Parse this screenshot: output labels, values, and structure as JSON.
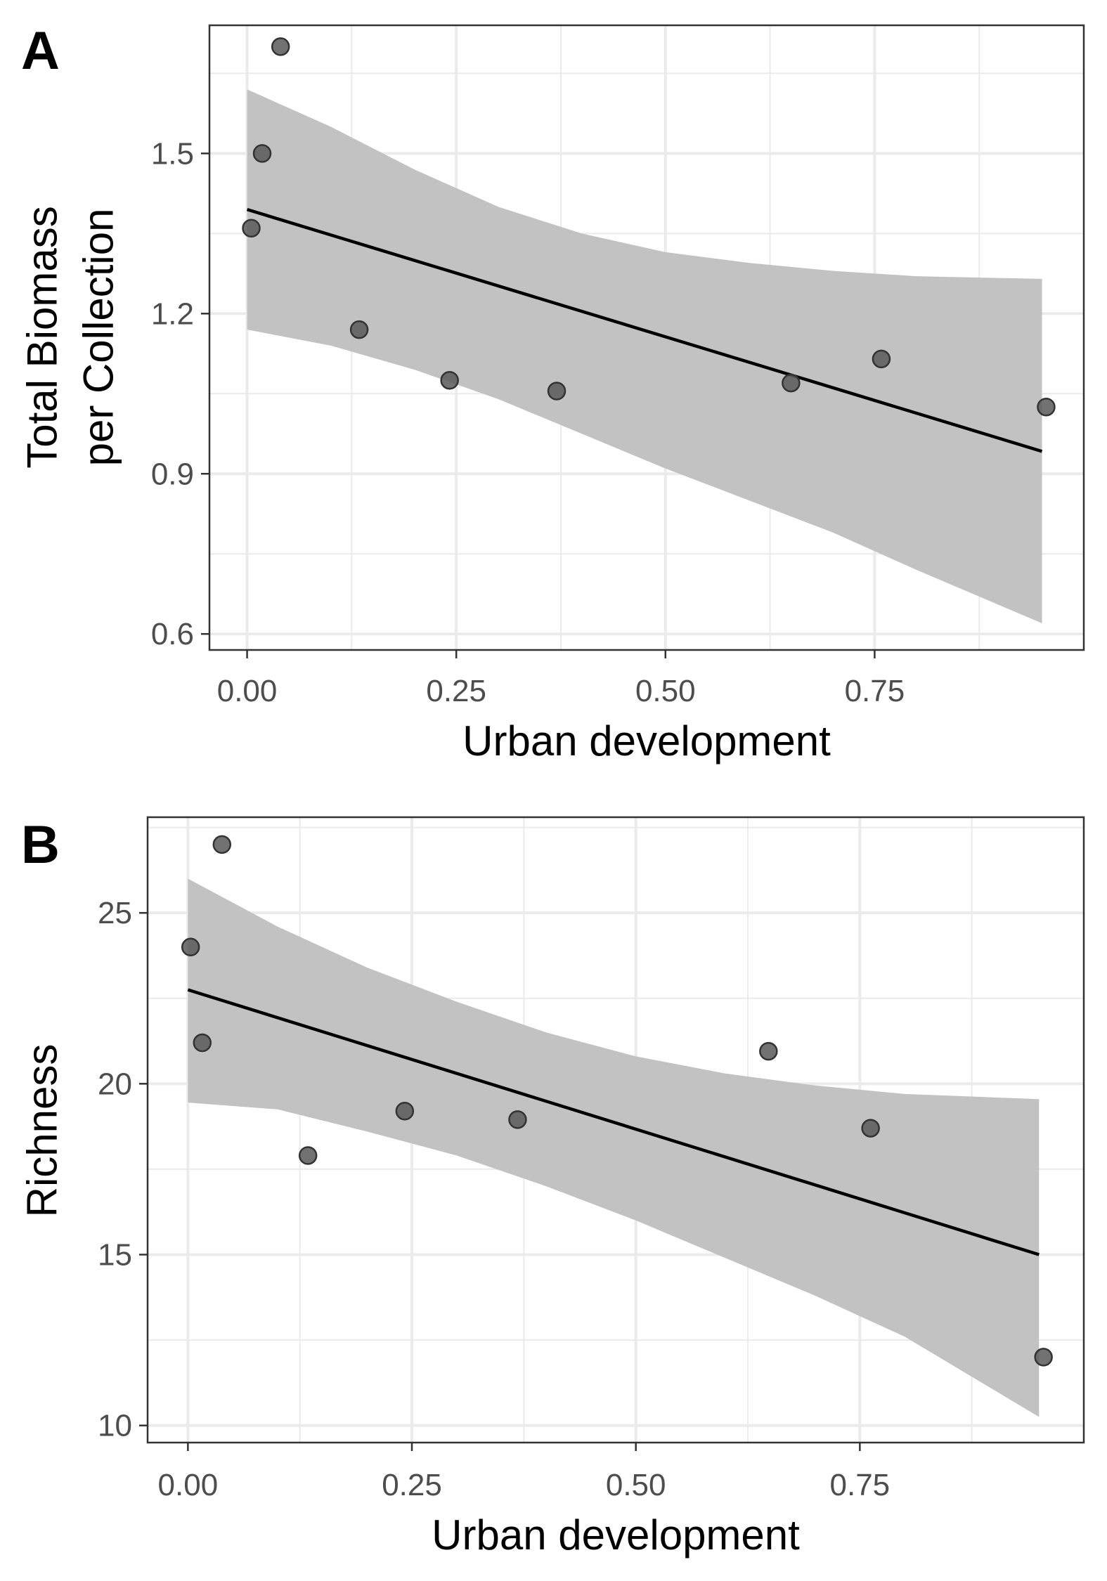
{
  "chart_data": [
    {
      "type": "scatter",
      "panel_label": "A",
      "xlabel": "Urban development",
      "ylabel": [
        "Total Biomass",
        "per Collection"
      ],
      "xlim": [
        -0.045,
        1.0
      ],
      "ylim": [
        0.57,
        1.74
      ],
      "x_major_ticks": [
        0.0,
        0.25,
        0.5,
        0.75
      ],
      "x_tick_labels": [
        "0.00",
        "0.25",
        "0.50",
        "0.75"
      ],
      "x_minor_ticks": [
        0.125,
        0.375,
        0.625,
        0.875
      ],
      "y_major_ticks": [
        0.6,
        0.9,
        1.2,
        1.5
      ],
      "y_tick_labels": [
        "0.6",
        "0.9",
        "1.2",
        "1.5"
      ],
      "y_minor_ticks": [
        0.75,
        1.05,
        1.35,
        1.65
      ],
      "grid": true,
      "points": [
        {
          "x": 0.005,
          "y": 1.36
        },
        {
          "x": 0.018,
          "y": 1.5
        },
        {
          "x": 0.04,
          "y": 1.7
        },
        {
          "x": 0.134,
          "y": 1.17
        },
        {
          "x": 0.242,
          "y": 1.075
        },
        {
          "x": 0.37,
          "y": 1.055
        },
        {
          "x": 0.65,
          "y": 1.07
        },
        {
          "x": 0.758,
          "y": 1.115
        },
        {
          "x": 0.955,
          "y": 1.025
        }
      ],
      "fit_line": {
        "x": [
          0.0,
          0.95
        ],
        "y": [
          1.395,
          0.942
        ]
      },
      "confidence_band": {
        "x": [
          0.0,
          0.1,
          0.2,
          0.3,
          0.4,
          0.5,
          0.6,
          0.7,
          0.8,
          0.95
        ],
        "upper": [
          1.62,
          1.55,
          1.47,
          1.4,
          1.35,
          1.315,
          1.295,
          1.28,
          1.27,
          1.265
        ],
        "lower": [
          1.17,
          1.14,
          1.095,
          1.04,
          0.975,
          0.91,
          0.85,
          0.79,
          0.72,
          0.62
        ]
      },
      "colors": {
        "point": "#595959",
        "point_edge": "#333333",
        "line": "#000000",
        "band": "#c2c2c2",
        "grid": "#ebebeb",
        "border": "#333333"
      }
    },
    {
      "type": "scatter",
      "panel_label": "B",
      "xlabel": "Urban development",
      "ylabel": [
        "Richness"
      ],
      "xlim": [
        -0.045,
        1.0
      ],
      "ylim": [
        9.5,
        27.8
      ],
      "x_major_ticks": [
        0.0,
        0.25,
        0.5,
        0.75
      ],
      "x_tick_labels": [
        "0.00",
        "0.25",
        "0.50",
        "0.75"
      ],
      "x_minor_ticks": [
        0.125,
        0.375,
        0.625,
        0.875
      ],
      "y_major_ticks": [
        10,
        15,
        20,
        25
      ],
      "y_tick_labels": [
        "10",
        "15",
        "20",
        "25"
      ],
      "y_minor_ticks": [
        12.5,
        17.5,
        22.5,
        27.5
      ],
      "grid": true,
      "points": [
        {
          "x": 0.003,
          "y": 24.0
        },
        {
          "x": 0.016,
          "y": 21.2
        },
        {
          "x": 0.038,
          "y": 27.0
        },
        {
          "x": 0.134,
          "y": 17.9
        },
        {
          "x": 0.242,
          "y": 19.2
        },
        {
          "x": 0.368,
          "y": 18.95
        },
        {
          "x": 0.648,
          "y": 20.95
        },
        {
          "x": 0.762,
          "y": 18.7
        },
        {
          "x": 0.955,
          "y": 12.0
        }
      ],
      "fit_line": {
        "x": [
          0.0,
          0.95
        ],
        "y": [
          22.75,
          15.0
        ]
      },
      "confidence_band": {
        "x": [
          0.0,
          0.1,
          0.2,
          0.3,
          0.4,
          0.5,
          0.6,
          0.7,
          0.8,
          0.95
        ],
        "upper": [
          26.0,
          24.6,
          23.4,
          22.4,
          21.5,
          20.8,
          20.3,
          19.95,
          19.7,
          19.55
        ],
        "lower": [
          19.45,
          19.25,
          18.6,
          17.9,
          17.0,
          16.0,
          14.9,
          13.8,
          12.6,
          10.25
        ]
      },
      "colors": {
        "point": "#595959",
        "point_edge": "#333333",
        "line": "#000000",
        "band": "#c2c2c2",
        "grid": "#ebebeb",
        "border": "#333333"
      }
    }
  ]
}
